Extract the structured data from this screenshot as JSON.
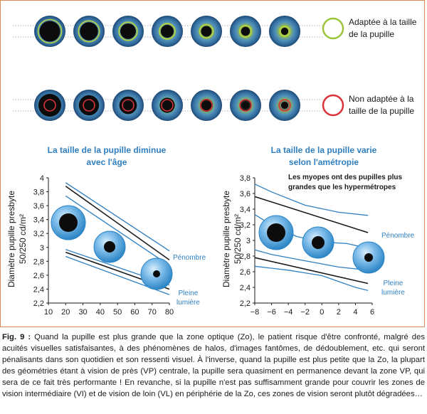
{
  "top_legend": {
    "adapted": "Adaptée à la taille de la pupille",
    "adapted_line1": "Adaptée à la taille",
    "adapted_line2": "de la pupille",
    "not_adapted_line1": "Non adaptée à la",
    "not_adapted_line2": "taille de la pupille",
    "adapted_color": "#9cc63a",
    "not_adapted_color": "#d8323a"
  },
  "eye_rows": {
    "count_per_row": 7,
    "pupil_sizes_relative": [
      1.0,
      0.85,
      0.7,
      0.55,
      0.42,
      0.32,
      0.22
    ]
  },
  "chart_data": [
    {
      "type": "line",
      "title": "La taille de la pupille diminue avec l'âge",
      "title_line1": "La taille de la pupille diminue",
      "title_line2": "avec l'âge",
      "ylabel_line1": "Diamètre pupille presbyte",
      "ylabel_line2": "50/250 cd/m²",
      "xlim": [
        10,
        80
      ],
      "ylim": [
        2.2,
        4.0
      ],
      "xticks": [
        "10",
        "20",
        "30",
        "40",
        "50",
        "60",
        "70",
        "80"
      ],
      "yticks": [
        "2,2",
        "2,4",
        "2,6",
        "2,8",
        "3",
        "3,2",
        "3,4",
        "3,6",
        "3,8",
        "4"
      ],
      "series": [
        {
          "name": "Pénombre",
          "kind": "mean",
          "x": [
            20,
            80
          ],
          "y": [
            3.88,
            2.82
          ]
        },
        {
          "kind": "upper",
          "x": [
            20,
            80
          ],
          "y": [
            3.93,
            2.95
          ]
        },
        {
          "kind": "lower",
          "x": [
            20,
            80
          ],
          "y": [
            3.74,
            2.74
          ]
        },
        {
          "name": "Pleine lumière",
          "kind": "mean",
          "x": [
            20,
            80
          ],
          "y": [
            2.93,
            2.4
          ]
        },
        {
          "kind": "upper",
          "x": [
            20,
            80
          ],
          "y": [
            2.97,
            2.46
          ]
        },
        {
          "kind": "lower",
          "x": [
            20,
            80
          ],
          "y": [
            2.87,
            2.32
          ]
        }
      ],
      "curve_labels": {
        "dim": "Pénombre",
        "bright_line1": "Pleine",
        "bright_line2": "lumière"
      }
    },
    {
      "type": "line",
      "title": "La taille de la pupille varie selon l'amétropie",
      "title_line1": "La taille de la pupille varie",
      "title_line2": "selon l'amétropie",
      "ylabel_line1": "Diamètre pupille presbyte",
      "ylabel_line2": "50/250 cd/m²",
      "xlim": [
        -8,
        6
      ],
      "ylim": [
        2.2,
        3.8
      ],
      "xticks": [
        "−8",
        "−6",
        "−4",
        "−2",
        "0",
        "2",
        "4",
        "6"
      ],
      "yticks": [
        "2,2",
        "2,4",
        "2,6",
        "2,8",
        "3",
        "3,2",
        "3,4",
        "3,6",
        "3,8"
      ],
      "annotation_line1": "Les myopes ont des pupilles plus",
      "annotation_line2": "grandes que les hypermétropes",
      "series": [
        {
          "name": "Pénombre",
          "kind": "mean",
          "x": [
            -8,
            5.5
          ],
          "y": [
            3.56,
            3.1
          ]
        },
        {
          "kind": "upper",
          "x": [
            -8,
            -6,
            -2,
            2,
            5.5
          ],
          "y": [
            3.72,
            3.62,
            3.45,
            3.36,
            3.32
          ]
        },
        {
          "kind": "lower",
          "x": [
            -8,
            -6,
            -3,
            0,
            3,
            5.5
          ],
          "y": [
            3.33,
            3.2,
            3.05,
            2.98,
            2.96,
            2.9
          ]
        },
        {
          "name": "Pleine lumière",
          "kind": "mean",
          "x": [
            -8,
            5.5
          ],
          "y": [
            2.78,
            2.45
          ]
        },
        {
          "kind": "upper",
          "x": [
            -8,
            -6,
            -2,
            2,
            5.5
          ],
          "y": [
            2.88,
            2.82,
            2.74,
            2.66,
            2.62
          ]
        },
        {
          "kind": "lower",
          "x": [
            -8,
            -4,
            0,
            4,
            5.5
          ],
          "y": [
            2.67,
            2.62,
            2.55,
            2.4,
            2.36
          ]
        }
      ],
      "curve_labels": {
        "dim": "Pénombre",
        "bright_line1": "Pleine",
        "bright_line2": "lumière"
      }
    }
  ],
  "caption": {
    "label": "Fig. 9 :",
    "text": "Quand la pupille est plus grande que la zone optique (Zo), le patient risque d'être confronté, malgré des acuités visuelles satisfaisantes, à des phénomènes de halos, d'images fantômes, de dédoublement, etc. qui seront pénalisants dans son quotidien et son ressenti visuel. À l'inverse, quand la pupille est plus petite que la Zo, la plupart des géométries étant à vision de près (VP) centrale, la pupille sera quasiment en permanence devant la zone VP, qui sera de ce fait très performante ! En revanche, si la pupille n'est pas suffisamment grande pour couvrir les zones de vision intermédiaire (VI) et de vision de loin (VL) en périphérie de la Zo, ces zones de vision seront plutôt dégradées…"
  },
  "colors": {
    "curve_blue": "#2f7fc1",
    "mean_black": "#1a1a1a",
    "frame_orange": "#e08a5a",
    "iris_blue": "#2f6fa8",
    "pupil_black": "#0c0c0c"
  }
}
